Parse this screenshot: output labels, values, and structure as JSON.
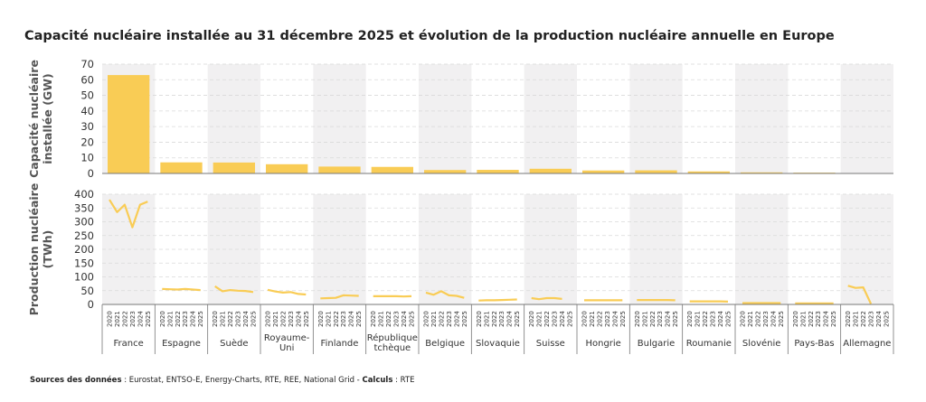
{
  "chart_data": [
    {
      "type": "bar",
      "title": "Capacité nucléaire installée au 31 décembre 2025 et évolution de la production nucléaire annuelle en Europe",
      "ylabel": [
        "Capacité nucléaire",
        "installée (GW)"
      ],
      "ylim": [
        0,
        70
      ],
      "yticks": [
        0,
        10,
        20,
        30,
        40,
        50,
        60,
        70
      ],
      "grid": true,
      "categories": [
        "France",
        "Espagne",
        "Suède",
        "Royaume-Uni",
        "Finlande",
        "République tchèque",
        "Belgique",
        "Slovaquie",
        "Suisse",
        "Hongrie",
        "Bulgarie",
        "Roumanie",
        "Slovénie",
        "Pays-Bas",
        "Allemagne"
      ],
      "values": [
        63,
        7.1,
        7,
        5.9,
        4.4,
        4.2,
        2.2,
        2.3,
        3,
        1.9,
        2,
        1.3,
        0.7,
        0.5,
        0
      ],
      "color": "#F9CC55"
    },
    {
      "type": "line",
      "ylabel": [
        "Production nucléaire",
        "(TWh)"
      ],
      "ylim": [
        0,
        400
      ],
      "yticks": [
        0,
        50,
        100,
        150,
        200,
        250,
        300,
        350,
        400
      ],
      "grid": true,
      "x": [
        "2020",
        "2021",
        "2022",
        "2023",
        "2024",
        "2025"
      ],
      "categories": [
        {
          "name": "France",
          "lines": [
            "France"
          ]
        },
        {
          "name": "Espagne",
          "lines": [
            "Espagne"
          ]
        },
        {
          "name": "Suède",
          "lines": [
            "Suède"
          ]
        },
        {
          "name": "Royaume-Uni",
          "lines": [
            "Royaume-",
            "Uni"
          ]
        },
        {
          "name": "Finlande",
          "lines": [
            "Finlande"
          ]
        },
        {
          "name": "République tchèque",
          "lines": [
            "République",
            "tchèque"
          ]
        },
        {
          "name": "Belgique",
          "lines": [
            "Belgique"
          ]
        },
        {
          "name": "Slovaquie",
          "lines": [
            "Slovaquie"
          ]
        },
        {
          "name": "Suisse",
          "lines": [
            "Suisse"
          ]
        },
        {
          "name": "Hongrie",
          "lines": [
            "Hongrie"
          ]
        },
        {
          "name": "Bulgarie",
          "lines": [
            "Bulgarie"
          ]
        },
        {
          "name": "Roumanie",
          "lines": [
            "Roumanie"
          ]
        },
        {
          "name": "Slovénie",
          "lines": [
            "Slovénie"
          ]
        },
        {
          "name": "Pays-Bas",
          "lines": [
            "Pays-Bas"
          ]
        },
        {
          "name": "Allemagne",
          "lines": [
            "Allemagne"
          ]
        }
      ],
      "series": [
        [
          380,
          335,
          362,
          280,
          362,
          373
        ],
        [
          56,
          55,
          54,
          56,
          54,
          52
        ],
        [
          66,
          48,
          52,
          50,
          49,
          45
        ],
        [
          53,
          47,
          43,
          45,
          38,
          36
        ],
        [
          22,
          23,
          24,
          33,
          32,
          31
        ],
        [
          30,
          30,
          30,
          30,
          29,
          30
        ],
        [
          43,
          35,
          48,
          33,
          31,
          24
        ],
        [
          14,
          15,
          15,
          16,
          17,
          18
        ],
        [
          23,
          19,
          23,
          23,
          20,
          0
        ],
        [
          15,
          15,
          15,
          15,
          15,
          15
        ],
        [
          16,
          16,
          16,
          16,
          16,
          15
        ],
        [
          11,
          11,
          11,
          11,
          11,
          10
        ],
        [
          5,
          5,
          5,
          5,
          5,
          5
        ],
        [
          4,
          4,
          4,
          4,
          4,
          4
        ],
        [
          68,
          60,
          62,
          2,
          null,
          null
        ]
      ],
      "color": "#F9CC55"
    }
  ],
  "colors": {
    "band": "#F1F0F1",
    "grid": "#D9D9D9",
    "axis": "#777777",
    "accent": "#F9CC55"
  },
  "footer": {
    "sources_label": "Sources des données",
    "sources_text": " : Eurostat, ENTSO-E, Energy-Charts, RTE, REE,  National Grid - ",
    "calc_label": "Calculs",
    "calc_text": " : RTE"
  }
}
